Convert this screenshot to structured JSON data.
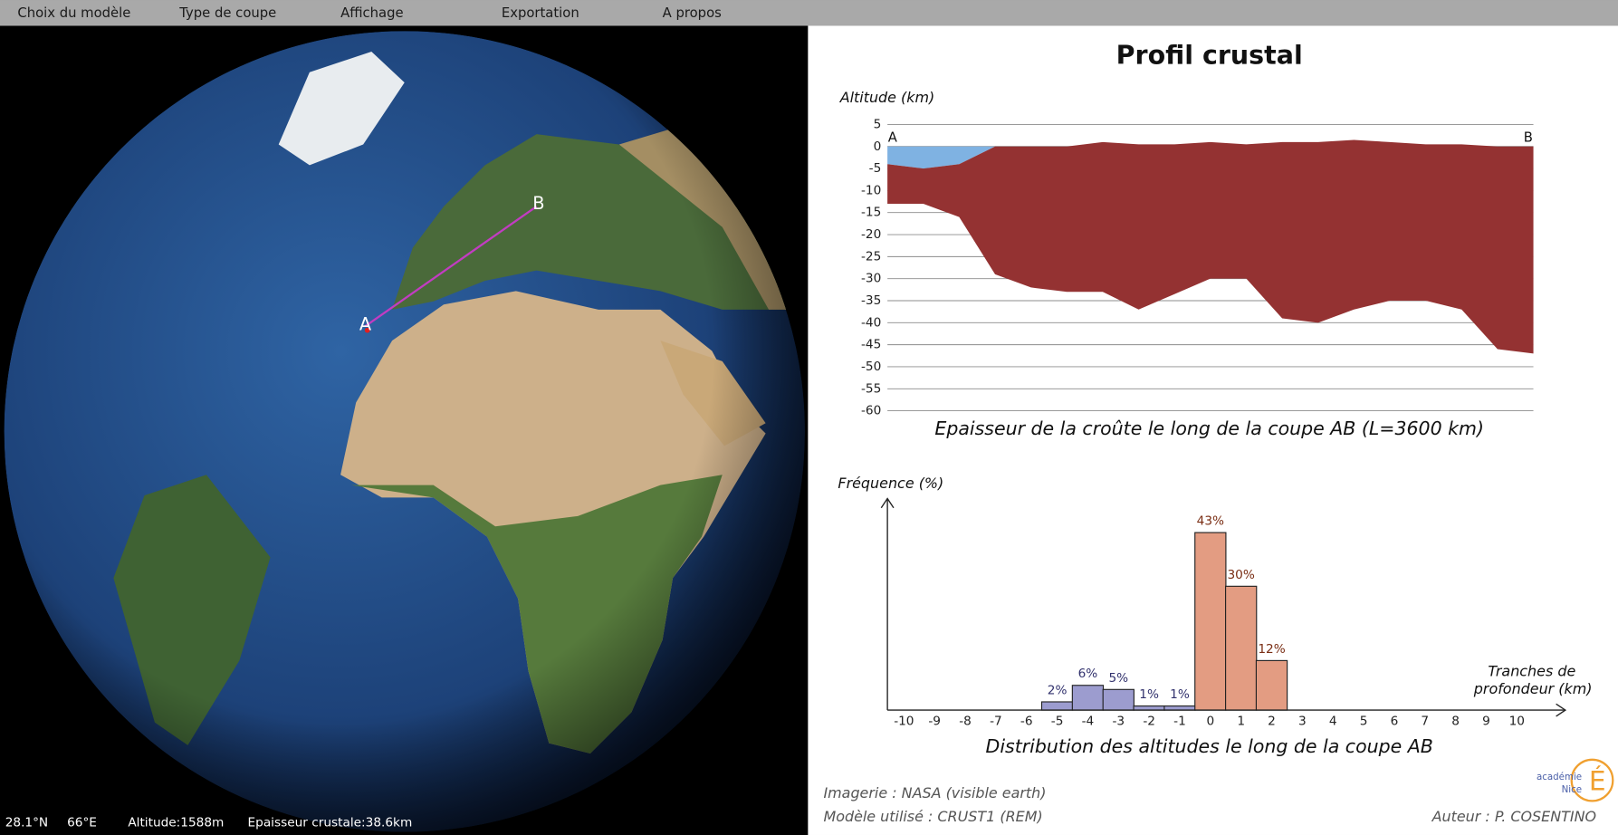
{
  "menu": [
    "Choix du modèle",
    "Type de coupe",
    "Affichage",
    "Exportation",
    "A propos"
  ],
  "globe": {
    "point_a": "A",
    "point_b": "B"
  },
  "status_bar": {
    "latitude": "28.1°N",
    "longitude": "66°E",
    "altitude": "Altitude:1588m",
    "crust_thickness": "Epaisseur crustale:38.6km"
  },
  "title": "Profil crustal",
  "chart_data": [
    {
      "type": "area",
      "y_label": "Altitude (km)",
      "caption": "Epaisseur de la croûte le long de la coupe AB (L=3600 km)",
      "start_label": "A",
      "end_label": "B",
      "x": [
        0,
        200,
        400,
        600,
        800,
        1000,
        1200,
        1400,
        1600,
        1800,
        2000,
        2200,
        2400,
        2600,
        2800,
        3000,
        3200,
        3400,
        3600
      ],
      "xlim": [
        0,
        3600
      ],
      "surface": [
        -4,
        -5,
        -4,
        0,
        0,
        0,
        1,
        0.5,
        0.5,
        1,
        0.5,
        1,
        1,
        1.5,
        1,
        0.5,
        0.5,
        0,
        0
      ],
      "moho": [
        -13,
        -13,
        -16,
        -29,
        -32,
        -33,
        -33,
        -37,
        -33.5,
        -30,
        -30,
        -39,
        -40,
        -37,
        -35,
        -35,
        -37,
        -46,
        -47
      ],
      "ylim": [
        -60,
        5
      ],
      "yticks": [
        5,
        0,
        -5,
        -10,
        -15,
        -20,
        -25,
        -30,
        -35,
        -40,
        -45,
        -50,
        -55,
        -60
      ],
      "grid": true,
      "crust_color": "#943232",
      "water_color": "#7fb2e2"
    },
    {
      "type": "bar",
      "y_label": "Fréquence (%)",
      "x_label": [
        "Tranches de",
        "profondeur (km)"
      ],
      "caption": "Distribution des altitudes le long de la coupe AB",
      "categories": [
        -10,
        -9,
        -8,
        -7,
        -6,
        -5,
        -4,
        -3,
        -2,
        -1,
        0,
        1,
        2,
        3,
        4,
        5,
        6,
        7,
        8,
        9,
        10
      ],
      "values": [
        0,
        0,
        0,
        0,
        0,
        2,
        6,
        5,
        1,
        1,
        43,
        30,
        12,
        0,
        0,
        0,
        0,
        0,
        0,
        0,
        0
      ],
      "value_labels": [
        null,
        null,
        null,
        null,
        null,
        "2%",
        "6%",
        "5%",
        "1%",
        "1%",
        "43%",
        "30%",
        "12%",
        null,
        null,
        null,
        null,
        null,
        null,
        null,
        null
      ],
      "ylim": [
        0,
        50
      ],
      "negative_color": "#9c9ccf",
      "positive_color": "#e39c82",
      "negative_label_color": "#33336e",
      "positive_label_color": "#7a2e14"
    }
  ],
  "footer": {
    "imagery": "Imagerie : NASA (visible earth)",
    "model": "Modèle utilisé : CRUST1 (REM)",
    "author": "Auteur : P. COSENTINO"
  },
  "logo": {
    "line1": "académie",
    "line2": "Nice",
    "mark": "É"
  }
}
